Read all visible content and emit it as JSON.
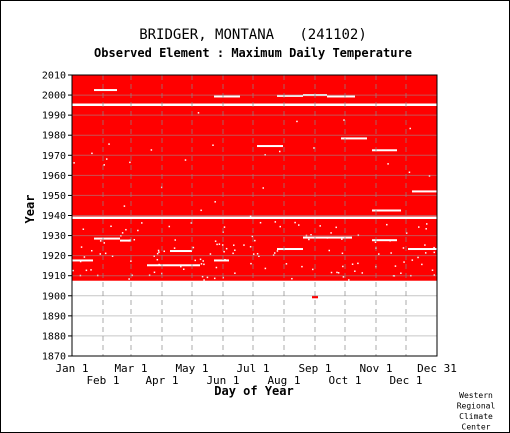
{
  "chart_data": {
    "type": "heatmap",
    "title": "BRIDGER, MONTANA   (241102)",
    "subtitle": "Observed Element : Maximum Daily Temperature",
    "xlabel": "Day of Year",
    "ylabel": "Year",
    "ylim": [
      1870,
      2010
    ],
    "xlim": [
      1,
      366
    ],
    "y_ticks": [
      "2010",
      "2000",
      "1990",
      "1980",
      "1970",
      "1960",
      "1950",
      "1940",
      "1930",
      "1920",
      "1910",
      "1900",
      "1890",
      "1880",
      "1870"
    ],
    "x_ticks_upper": [
      {
        "label": "Jan 1",
        "day": 1
      },
      {
        "label": "Mar 1",
        "day": 60
      },
      {
        "label": "May 1",
        "day": 121
      },
      {
        "label": "Jul 1",
        "day": 182
      },
      {
        "label": "Sep 1",
        "day": 244
      },
      {
        "label": "Nov 1",
        "day": 305
      },
      {
        "label": "Dec 31",
        "day": 366
      }
    ],
    "x_ticks_lower": [
      {
        "label": "Feb 1",
        "day": 32
      },
      {
        "label": "Apr 1",
        "day": 91
      },
      {
        "label": "Jun 1",
        "day": 152
      },
      {
        "label": "Aug 1",
        "day": 213
      },
      {
        "label": "Oct 1",
        "day": 274
      },
      {
        "label": "Dec 1",
        "day": 335
      }
    ],
    "grid": true,
    "data_color": "#ff0000",
    "observed_block": {
      "year_start": 1907.5,
      "year_end": 2010,
      "day_start": 1,
      "day_end": 366
    },
    "isolated_observations": [
      {
        "year": 1899.5,
        "day_start": 241,
        "day_end": 247
      }
    ],
    "missing_full_years": [
      1939,
      1995.3
    ],
    "missing_segments": [
      {
        "year": 2002.5,
        "day_start": 23,
        "day_end": 46
      },
      {
        "year": 1999.3,
        "day_start": 143,
        "day_end": 169
      },
      {
        "year": 1999.6,
        "day_start": 206,
        "day_end": 232
      },
      {
        "year": 2000,
        "day_start": 232,
        "day_end": 256
      },
      {
        "year": 1999.3,
        "day_start": 256,
        "day_end": 284
      },
      {
        "year": 1978.4,
        "day_start": 270,
        "day_end": 296
      },
      {
        "year": 1974.6,
        "day_start": 186,
        "day_end": 212
      },
      {
        "year": 1972.5,
        "day_start": 301,
        "day_end": 326
      },
      {
        "year": 1952,
        "day_start": 341,
        "day_end": 366
      },
      {
        "year": 1942.5,
        "day_start": 301,
        "day_end": 330
      },
      {
        "year": 1928.5,
        "day_start": 23,
        "day_end": 49
      },
      {
        "year": 1929,
        "day_start": 232,
        "day_end": 281
      },
      {
        "year": 1927.7,
        "day_start": 301,
        "day_end": 326
      },
      {
        "year": 1923.3,
        "day_start": 206,
        "day_end": 232
      },
      {
        "year": 1923.3,
        "day_start": 337,
        "day_end": 366
      },
      {
        "year": 1922.3,
        "day_start": 99,
        "day_end": 121
      },
      {
        "year": 1917.6,
        "day_start": 1,
        "day_end": 22
      },
      {
        "year": 1917.6,
        "day_start": 143,
        "day_end": 158
      },
      {
        "year": 1915.2,
        "day_start": 76,
        "day_end": 129
      },
      {
        "year": 1927.5,
        "day_start": 49,
        "day_end": 60
      }
    ]
  },
  "credit": [
    "Western",
    "Regional",
    "Climate",
    "Center"
  ]
}
